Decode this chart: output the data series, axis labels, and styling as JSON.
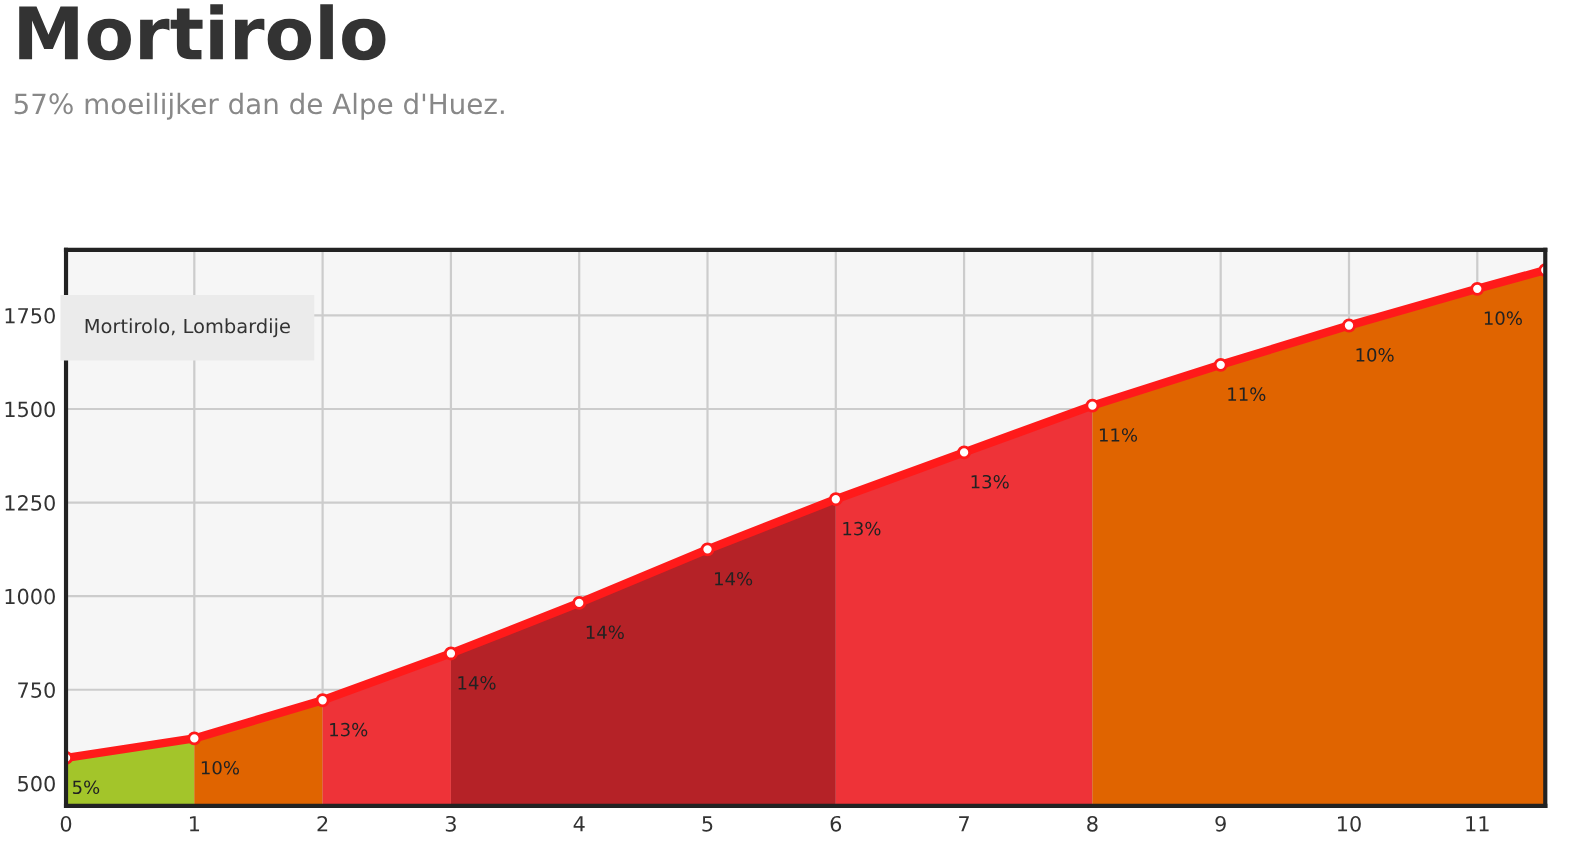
{
  "chart_data": {
    "type": "area",
    "title": "Mortirolo",
    "subtitle": "57% moeilijker dan de Alpe d'Huez.",
    "xlim": [
      0,
      11.53
    ],
    "ylim": [
      440,
      1925
    ],
    "xticks": [
      0,
      1,
      2,
      3,
      4,
      5,
      6,
      7,
      8,
      9,
      10,
      11
    ],
    "yticks": [
      500,
      750,
      1000,
      1250,
      1500,
      1750
    ],
    "grid": true,
    "series": [
      {
        "color": "#a3c52a",
        "x": [
          0,
          1
        ],
        "values": [
          568,
          620
        ]
      },
      {
        "color": "#e06400",
        "x": [
          1,
          2
        ],
        "values": [
          620,
          722
        ]
      },
      {
        "color": "#ee3338",
        "x": [
          2,
          3
        ],
        "values": [
          722,
          847
        ]
      },
      {
        "color": "#b52227",
        "x": [
          3,
          4,
          5,
          6
        ],
        "values": [
          847,
          982,
          1125,
          1259
        ]
      },
      {
        "color": "#ee3338",
        "x": [
          6,
          7,
          8
        ],
        "values": [
          1259,
          1384,
          1509
        ]
      },
      {
        "color": "#e06400",
        "x": [
          8,
          9,
          10,
          11,
          11.53
        ],
        "values": [
          1509,
          1618,
          1723,
          1821,
          1871
        ]
      },
      {
        "type": "line",
        "marker": "circle",
        "color": "#ff1a1a",
        "x": [
          0,
          1,
          2,
          3,
          4,
          5,
          6,
          7,
          8,
          9,
          10,
          11,
          11.53
        ],
        "values": [
          568,
          620,
          722,
          847,
          982,
          1125,
          1259,
          1384,
          1509,
          1618,
          1723,
          1821,
          1871
        ]
      }
    ],
    "annotations": [
      "Mortirolo, Lombardije",
      {
        "text": "5%",
        "x": 0,
        "y": 568
      },
      {
        "text": "10%",
        "x": 1,
        "y": 620
      },
      {
        "text": "13%",
        "x": 2,
        "y": 722
      },
      {
        "text": "14%",
        "x": 3,
        "y": 847
      },
      {
        "text": "14%",
        "x": 4,
        "y": 982
      },
      {
        "text": "14%",
        "x": 5,
        "y": 1125
      },
      {
        "text": "13%",
        "x": 6,
        "y": 1259
      },
      {
        "text": "13%",
        "x": 7,
        "y": 1384
      },
      {
        "text": "11%",
        "x": 8,
        "y": 1509
      },
      {
        "text": "11%",
        "x": 9,
        "y": 1618
      },
      {
        "text": "10%",
        "x": 10,
        "y": 1723
      },
      {
        "text": "10%",
        "x": 11,
        "y": 1821
      }
    ]
  }
}
